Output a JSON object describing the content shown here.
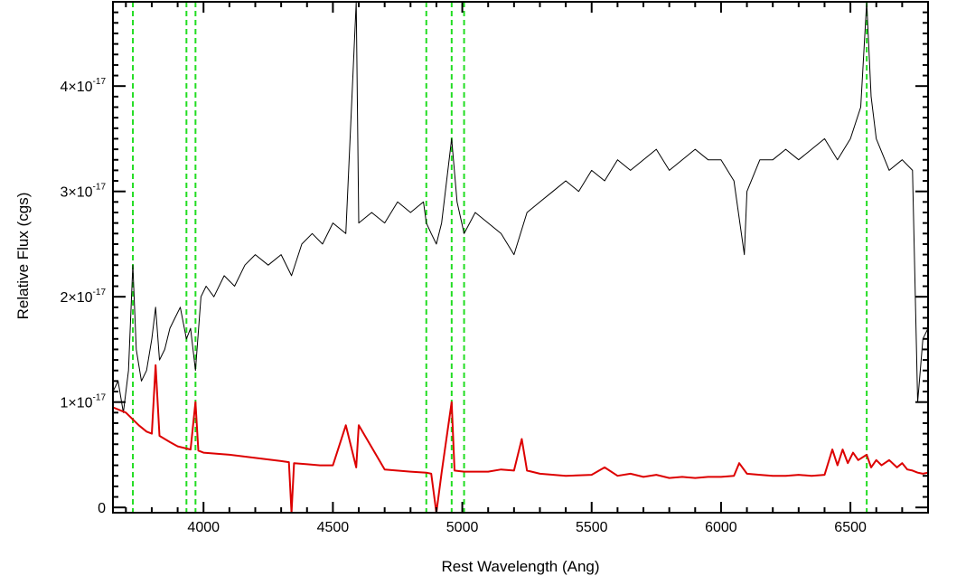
{
  "chart_data": {
    "type": "line",
    "title": "",
    "xlabel": "Rest Wavelength (Ang)",
    "ylabel": "Relative Flux (cgs)",
    "xlim": [
      3650,
      6800
    ],
    "ylim": [
      -5e-19,
      4.8e-17
    ],
    "x_ticks": [
      {
        "value": 4000,
        "label": "4000"
      },
      {
        "value": 4500,
        "label": "4500"
      },
      {
        "value": 5000,
        "label": "5000"
      },
      {
        "value": 5500,
        "label": "5500"
      },
      {
        "value": 6000,
        "label": "6000"
      },
      {
        "value": 6500,
        "label": "6500"
      }
    ],
    "y_ticks": [
      {
        "value": 0,
        "label": "0",
        "exp": ""
      },
      {
        "value": 1e-17,
        "label": "1×10",
        "exp": "-17"
      },
      {
        "value": 2e-17,
        "label": "2×10",
        "exp": "-17"
      },
      {
        "value": 3e-17,
        "label": "3×10",
        "exp": "-17"
      },
      {
        "value": 4e-17,
        "label": "4×10",
        "exp": "-17"
      }
    ],
    "grid": false,
    "reference_lines": {
      "color": "#22dd22",
      "style": "dashed",
      "x": [
        3727,
        3934,
        3969,
        4861,
        4959,
        5007,
        6563
      ]
    },
    "series": [
      {
        "name": "",
        "color": "#000000",
        "x": [
          3650,
          3670,
          3690,
          3710,
          3727,
          3740,
          3760,
          3780,
          3800,
          3815,
          3830,
          3850,
          3870,
          3890,
          3910,
          3934,
          3950,
          3969,
          3990,
          4010,
          4040,
          4080,
          4120,
          4160,
          4200,
          4250,
          4300,
          4340,
          4380,
          4420,
          4460,
          4500,
          4550,
          4590,
          4600,
          4650,
          4700,
          4750,
          4800,
          4850,
          4861,
          4880,
          4900,
          4920,
          4959,
          4980,
          5007,
          5050,
          5100,
          5150,
          5200,
          5250,
          5300,
          5350,
          5400,
          5450,
          5500,
          5550,
          5600,
          5650,
          5700,
          5750,
          5800,
          5850,
          5900,
          5950,
          6000,
          6050,
          6090,
          6100,
          6150,
          6200,
          6250,
          6300,
          6350,
          6400,
          6450,
          6500,
          6540,
          6563,
          6580,
          6600,
          6650,
          6700,
          6740,
          6760,
          6780,
          6800
        ],
        "y": [
          1.1e-17,
          1.2e-17,
          9e-18,
          1.3e-17,
          2.3e-17,
          1.5e-17,
          1.2e-17,
          1.3e-17,
          1.6e-17,
          1.9e-17,
          1.4e-17,
          1.5e-17,
          1.7e-17,
          1.8e-17,
          1.9e-17,
          1.6e-17,
          1.7e-17,
          1.3e-17,
          2e-17,
          2.1e-17,
          2e-17,
          2.2e-17,
          2.1e-17,
          2.3e-17,
          2.4e-17,
          2.3e-17,
          2.4e-17,
          2.2e-17,
          2.5e-17,
          2.6e-17,
          2.5e-17,
          2.7e-17,
          2.6e-17,
          4.8e-17,
          2.7e-17,
          2.8e-17,
          2.7e-17,
          2.9e-17,
          2.8e-17,
          2.9e-17,
          2.7e-17,
          2.6e-17,
          2.5e-17,
          2.7e-17,
          3.5e-17,
          2.9e-17,
          2.6e-17,
          2.8e-17,
          2.7e-17,
          2.6e-17,
          2.4e-17,
          2.8e-17,
          2.9e-17,
          3e-17,
          3.1e-17,
          3e-17,
          3.2e-17,
          3.1e-17,
          3.3e-17,
          3.2e-17,
          3.3e-17,
          3.4e-17,
          3.2e-17,
          3.3e-17,
          3.4e-17,
          3.3e-17,
          3.3e-17,
          3.1e-17,
          2.4e-17,
          3e-17,
          3.3e-17,
          3.3e-17,
          3.4e-17,
          3.3e-17,
          3.4e-17,
          3.5e-17,
          3.3e-17,
          3.5e-17,
          3.8e-17,
          4.8e-17,
          3.9e-17,
          3.5e-17,
          3.2e-17,
          3.3e-17,
          3.2e-17,
          1e-17,
          1.6e-17,
          1.7e-17
        ]
      },
      {
        "name": "",
        "color": "#dd0000",
        "x": [
          3650,
          3700,
          3750,
          3780,
          3800,
          3815,
          3830,
          3870,
          3900,
          3950,
          3969,
          3980,
          4000,
          4100,
          4200,
          4300,
          4330,
          4340,
          4350,
          4400,
          4450,
          4500,
          4550,
          4590,
          4600,
          4700,
          4800,
          4861,
          4880,
          4900,
          4920,
          4959,
          4970,
          5007,
          5100,
          5150,
          5200,
          5230,
          5250,
          5300,
          5400,
          5500,
          5550,
          5600,
          5650,
          5700,
          5750,
          5800,
          5850,
          5900,
          5950,
          6000,
          6050,
          6070,
          6100,
          6150,
          6200,
          6250,
          6300,
          6350,
          6400,
          6430,
          6450,
          6470,
          6490,
          6510,
          6530,
          6563,
          6580,
          6600,
          6620,
          6650,
          6680,
          6700,
          6720,
          6740,
          6760,
          6780,
          6800
        ],
        "y": [
          9.5e-18,
          9e-18,
          7.8e-18,
          7.2e-18,
          7e-18,
          1.35e-17,
          6.8e-18,
          6.2e-18,
          5.8e-18,
          5.5e-18,
          1e-17,
          5.4e-18,
          5.2e-18,
          5e-18,
          4.7e-18,
          4.4e-18,
          4.3e-18,
          -5e-19,
          4.2e-18,
          4.1e-18,
          4e-18,
          4e-18,
          7.8e-18,
          3.8e-18,
          7.8e-18,
          3.6e-18,
          3.4e-18,
          3.3e-18,
          3.2e-18,
          -5e-19,
          3.3e-18,
          1e-17,
          3.5e-18,
          3.4e-18,
          3.4e-18,
          3.6e-18,
          3.5e-18,
          6.5e-18,
          3.5e-18,
          3.2e-18,
          3e-18,
          3.1e-18,
          3.8e-18,
          3e-18,
          3.2e-18,
          2.9e-18,
          3.1e-18,
          2.8e-18,
          2.9e-18,
          2.8e-18,
          2.9e-18,
          2.9e-18,
          3e-18,
          4.2e-18,
          3.2e-18,
          3.1e-18,
          3e-18,
          3e-18,
          3.1e-18,
          3e-18,
          3.1e-18,
          5.5e-18,
          4e-18,
          5.5e-18,
          4.2e-18,
          5.2e-18,
          4.5e-18,
          5e-18,
          3.8e-18,
          4.5e-18,
          4e-18,
          4.5e-18,
          3.8e-18,
          4.2e-18,
          3.6e-18,
          3.5e-18,
          3.3e-18,
          3.2e-18,
          3.3e-18
        ]
      }
    ]
  }
}
